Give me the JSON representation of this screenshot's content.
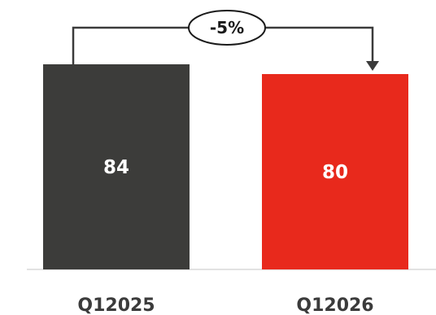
{
  "chart_data": {
    "type": "bar",
    "categories": [
      "Q12025",
      "Q12026"
    ],
    "values": [
      84,
      80
    ],
    "data_labels": [
      "84",
      "80"
    ],
    "change_label": "-5%",
    "ylim": [
      0,
      89
    ],
    "grid": false,
    "legend": "none"
  },
  "colors": {
    "bar_1": "#3c3c3a",
    "bar_2": "#e8291c",
    "axis": "#d9d9d9",
    "connector": "#3b3b3b"
  }
}
